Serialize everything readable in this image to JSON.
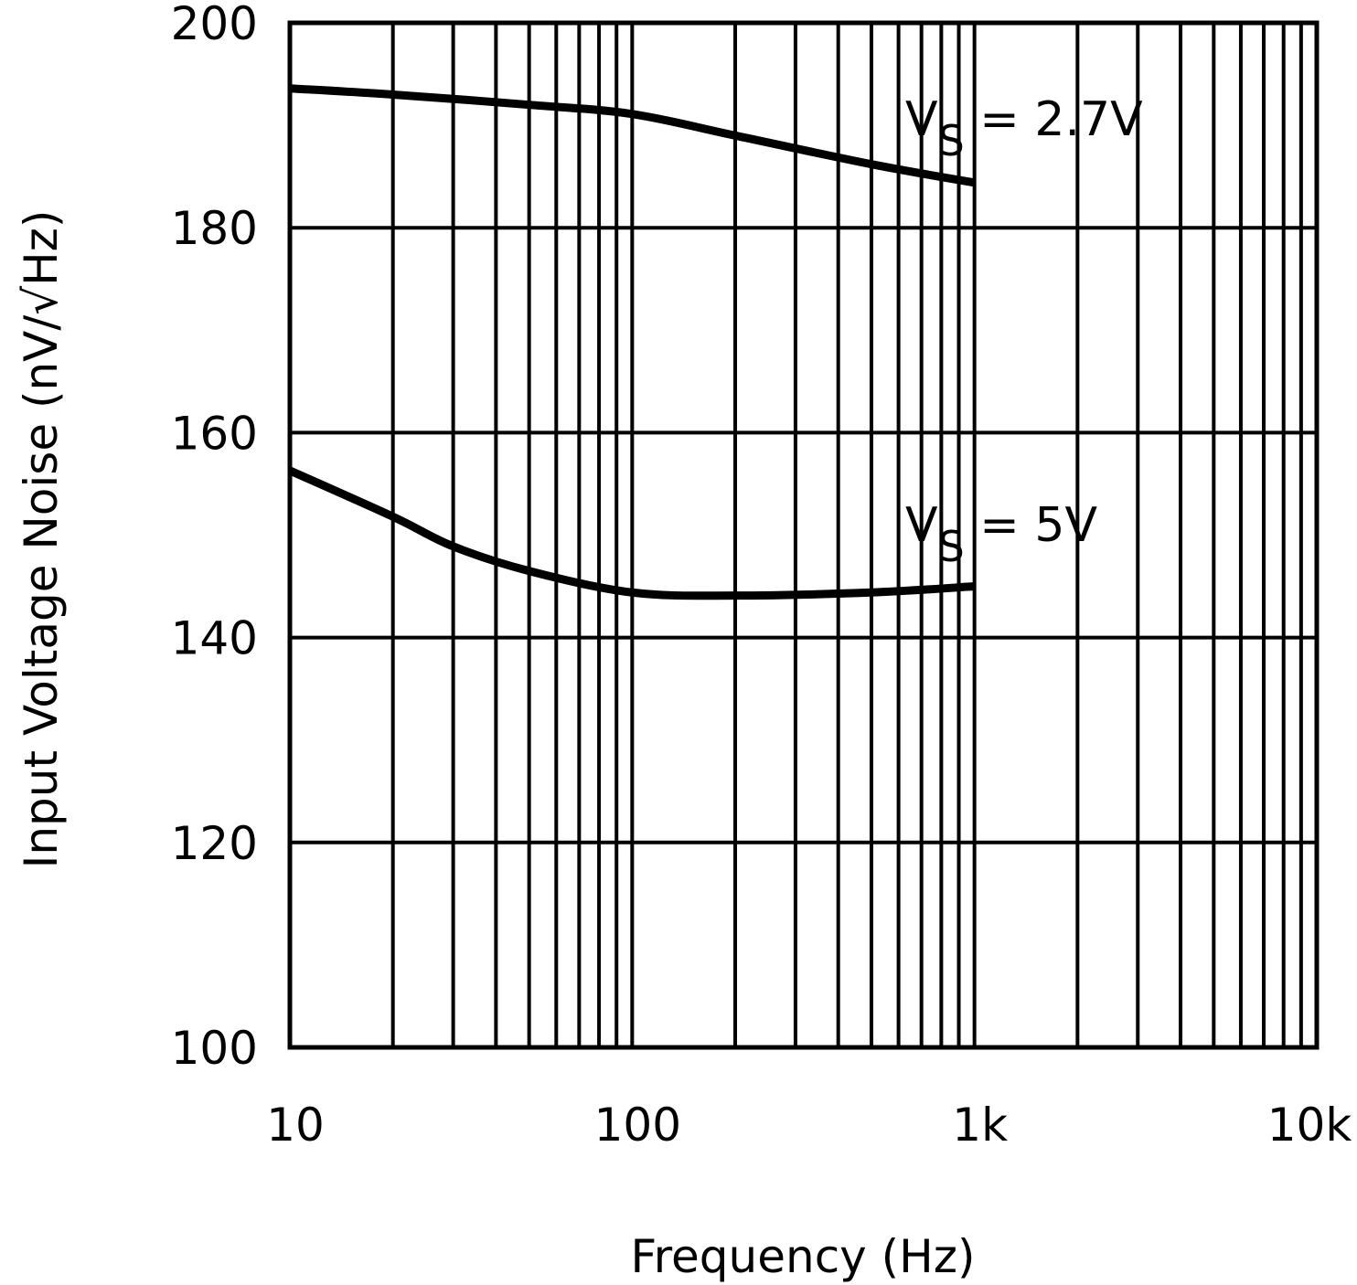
{
  "chart_data": {
    "type": "line",
    "title": "",
    "xlabel": "Frequency (Hz)",
    "ylabel": "Input Voltage Noise (nV/√Hz)",
    "xscale": "log",
    "xlim": [
      10,
      10000
    ],
    "ylim": [
      100,
      200
    ],
    "grid": true,
    "x_ticks": [
      10,
      100,
      1000,
      10000
    ],
    "x_tick_labels": [
      "10",
      "100",
      "1k",
      "10k"
    ],
    "y_ticks": [
      100,
      120,
      140,
      160,
      180,
      200
    ],
    "y_tick_labels": [
      "100",
      "120",
      "140",
      "160",
      "180",
      "200"
    ],
    "series": [
      {
        "name": "VS = 2.7V",
        "label_main": "V",
        "label_sub": "S",
        "label_rest": " = 2.7V",
        "x": [
          10,
          20,
          50,
          100,
          200,
          500,
          1000
        ],
        "y": [
          193.6,
          193.0,
          192.0,
          191.1,
          189.0,
          186.2,
          184.4
        ]
      },
      {
        "name": "VS = 5V",
        "label_main": "V",
        "label_sub": "S",
        "label_rest": " = 5V",
        "x": [
          10,
          20,
          30,
          50,
          100,
          200,
          500,
          1000
        ],
        "y": [
          156.3,
          151.8,
          148.9,
          146.5,
          144.4,
          144.1,
          144.4,
          145.0
        ]
      }
    ]
  }
}
